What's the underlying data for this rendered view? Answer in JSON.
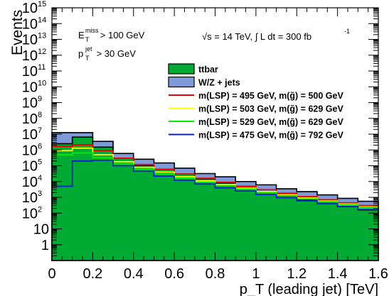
{
  "chart_data": {
    "type": "histogram",
    "title": "",
    "xlabel": "p_T (leading jet) [TeV]",
    "ylabel": "Events",
    "xlim": [
      0,
      1.6
    ],
    "ylim": [
      0.1,
      1000000000000000
    ],
    "yscale": "log",
    "bin_edges": [
      0,
      0.1,
      0.2,
      0.3,
      0.4,
      0.5,
      0.6,
      0.7,
      0.8,
      0.9,
      1.0,
      1.1,
      1.2,
      1.3,
      1.4,
      1.5,
      1.6
    ],
    "x_ticks": [
      "0",
      "0.2",
      "0.4",
      "0.6",
      "0.8",
      "1",
      "1.2",
      "1.4",
      "1.6"
    ],
    "y_ticks": [
      {
        "label": "1",
        "value": 1
      },
      {
        "label": "10",
        "value": 10
      },
      {
        "label": "10",
        "exp": "2",
        "value": 100
      },
      {
        "label": "10",
        "exp": "3",
        "value": 1000
      },
      {
        "label": "10",
        "exp": "4",
        "value": 10000
      },
      {
        "label": "10",
        "exp": "5",
        "value": 100000
      },
      {
        "label": "10",
        "exp": "6",
        "value": 1000000
      },
      {
        "label": "10",
        "exp": "7",
        "value": 10000000
      },
      {
        "label": "10",
        "exp": "8",
        "value": 100000000
      },
      {
        "label": "10",
        "exp": "9",
        "value": 1000000000
      },
      {
        "label": "10",
        "exp": "10",
        "value": 10000000000
      },
      {
        "label": "10",
        "exp": "11",
        "value": 100000000000
      },
      {
        "label": "10",
        "exp": "12",
        "value": 1000000000000
      },
      {
        "label": "10",
        "exp": "13",
        "value": 10000000000000
      },
      {
        "label": "10",
        "exp": "14",
        "value": 100000000000000
      },
      {
        "label": "10",
        "exp": "15",
        "value": 1000000000000000
      }
    ],
    "legend_position": "upper-right",
    "annotations": [
      {
        "main": "E",
        "sub": "T",
        "sup": "miss",
        "rest": " > 100 GeV"
      },
      {
        "main": "p",
        "sub": "T",
        "sup": "jet",
        "rest": " > 30 GeV"
      },
      {
        "text": "√s = 14 TeV, ∫ L dt = 300 fb",
        "sup": "-1"
      }
    ],
    "series": [
      {
        "name": "ttbar",
        "style": "filled",
        "color": "#00aa33",
        "values": [
          2500000,
          6500000,
          1500000,
          300000,
          100000,
          60000,
          30000,
          15000,
          8000,
          4000,
          2200,
          1200,
          700,
          420,
          260,
          160
        ]
      },
      {
        "name": "W/Z + jets",
        "style": "stacked-filled",
        "color": "#7e9ad9",
        "values": [
          10000000,
          6000000,
          2000000,
          300000,
          160000,
          90000,
          40000,
          17000,
          12000,
          6000,
          4000,
          2300,
          1600,
          1000,
          600,
          400
        ]
      },
      {
        "name": "m(LSP) = 495 GeV, m(g̃) = 500 GeV",
        "style": "line",
        "color": "#ee0000",
        "values": [
          1700000,
          2100000,
          900000,
          300000,
          120000,
          60000,
          30000,
          16000,
          9000,
          5000,
          3000,
          1800,
          1100,
          700,
          450,
          300
        ]
      },
      {
        "name": "m(LSP) = 503 GeV, m(g̃) = 629 GeV",
        "style": "line",
        "color": "#ffff00",
        "values": [
          900000,
          1300000,
          500000,
          180000,
          80000,
          40000,
          20000,
          11000,
          6500,
          3800,
          2300,
          1400,
          900,
          580,
          380,
          250
        ]
      },
      {
        "name": "m(LSP) = 529 GeV, m(g̃) = 629 GeV",
        "style": "line",
        "color": "#00ee00",
        "values": [
          500000,
          650000,
          330000,
          130000,
          60000,
          30000,
          16000,
          9000,
          5500,
          3300,
          2000,
          1250,
          800,
          520,
          340,
          230
        ]
      },
      {
        "name": "m(LSP) = 475 GeV, m(g̃) = 792 GeV",
        "style": "line",
        "color": "#0022cc",
        "values": [
          5000,
          200000,
          220000,
          100000,
          45000,
          22000,
          12000,
          7000,
          4000,
          2500,
          1500,
          950,
          600,
          400,
          260,
          170
        ]
      }
    ]
  }
}
